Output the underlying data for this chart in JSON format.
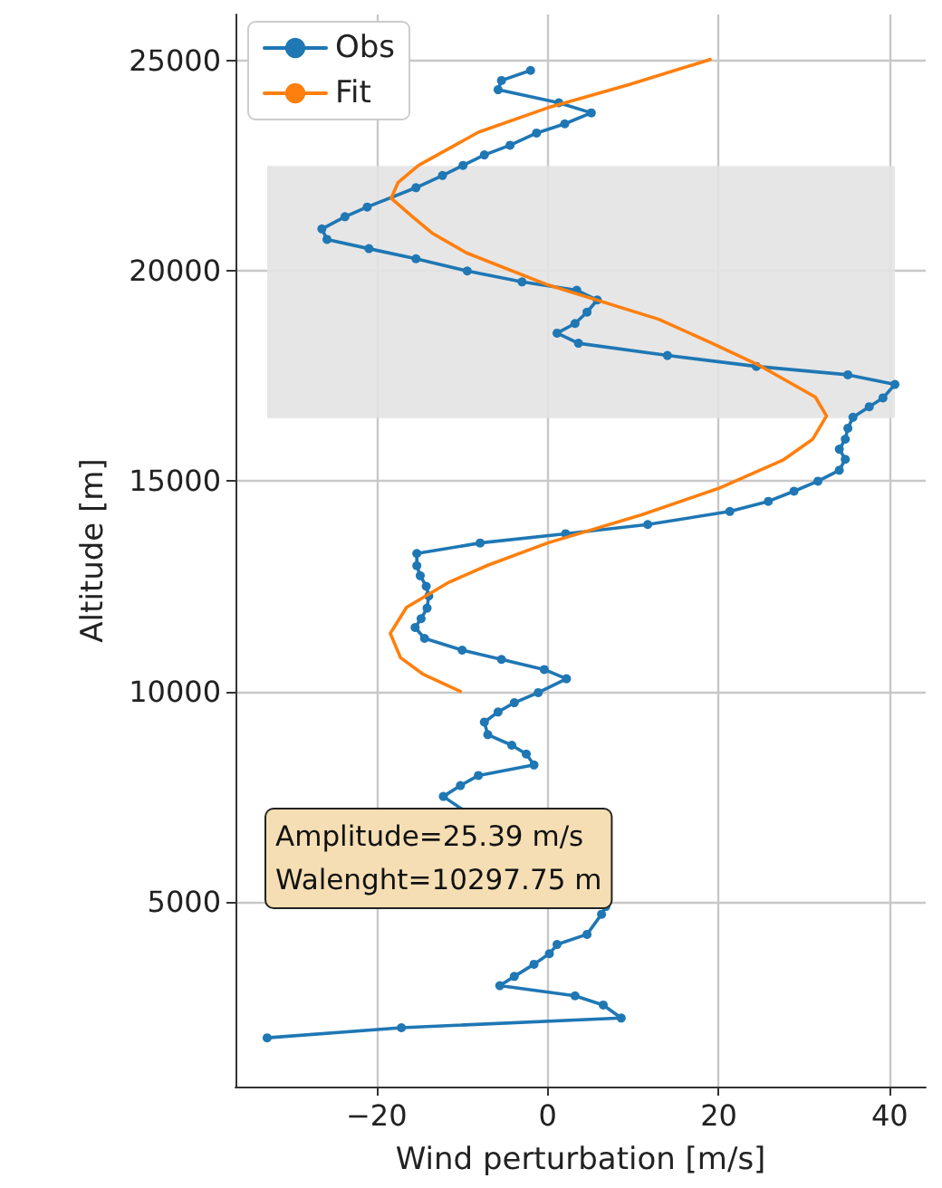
{
  "chart_data": {
    "type": "line",
    "xlabel": "Wind perturbation [m/s]",
    "ylabel": "Altitude [m]",
    "xlim": [
      -36.5,
      44.2
    ],
    "ylim": [
      600,
      26100
    ],
    "xticks": [
      {
        "value": -20,
        "label": "−20"
      },
      0,
      20,
      40
    ],
    "yticks": [
      5000,
      10000,
      15000,
      20000,
      25000
    ],
    "grid": true,
    "legend": "top left",
    "series": [
      {
        "name": "Obs",
        "color": "#1f77b4",
        "marker": "circle",
        "x": [
          -2.0,
          -5.4,
          -5.8,
          1.3,
          5.1,
          2.0,
          -1.3,
          -4.4,
          -7.4,
          -9.9,
          -12.3,
          -15.4,
          -21.1,
          -23.7,
          -26.4,
          -25.8,
          -20.9,
          -15.4,
          -9.4,
          -3.0,
          3.4,
          5.8,
          4.6,
          3.2,
          1.1,
          3.6,
          14.0,
          24.4,
          35.1,
          40.6,
          39.2,
          37.6,
          35.7,
          35.1,
          34.8,
          34.1,
          34.8,
          34.1,
          31.6,
          28.8,
          25.8,
          21.3,
          11.7,
          2.1,
          -7.9,
          -15.3,
          -15.3,
          -14.9,
          -14.2,
          -13.9,
          -14.1,
          -14.8,
          -15.5,
          -14.4,
          -10.0,
          -5.4,
          -0.4,
          2.2,
          -1.1,
          -3.9,
          -5.8,
          -7.4,
          -7.0,
          -4.2,
          -2.5,
          -1.6,
          -8.1,
          -10.2,
          -12.2,
          6.8,
          6.3,
          4.6,
          1.1,
          0.2,
          -1.6,
          -3.9,
          -5.6,
          3.2,
          6.5,
          8.6,
          -17.1,
          -32.8
        ],
        "values": [
          24770,
          24530,
          24310,
          24000,
          23760,
          23500,
          23280,
          22990,
          22760,
          22510,
          22270,
          21980,
          21520,
          21290,
          21000,
          20750,
          20530,
          20290,
          20000,
          19740,
          19540,
          19310,
          19020,
          18750,
          18520,
          18280,
          17990,
          17730,
          17530,
          17300,
          16980,
          16770,
          16520,
          16260,
          16000,
          15760,
          15520,
          15260,
          15000,
          14760,
          14520,
          14280,
          13970,
          13750,
          13530,
          13280,
          12990,
          12750,
          12500,
          12270,
          11980,
          11730,
          11520,
          11260,
          10980,
          10760,
          10520,
          10300,
          9970,
          9730,
          9510,
          9270,
          8970,
          8720,
          8510,
          8250,
          8000,
          7760,
          7500,
          4880,
          4700,
          4220,
          3980,
          3760,
          3510,
          3220,
          3000,
          2760,
          2540,
          2230,
          2000,
          1760
        ]
      },
      {
        "name": "Fit",
        "color": "#ff7f0e",
        "marker": "none",
        "x": [
          -10.2,
          -14.5,
          -17.2,
          -18.4,
          -16.5,
          -11.5,
          -7.0,
          0,
          11,
          20,
          27.5,
          31,
          32.6,
          31.3,
          24.6,
          19,
          13,
          0,
          -9.5,
          -13.5,
          -15.8,
          -18.3,
          -17.5,
          -15.1,
          -8.1,
          0,
          9.5,
          19
        ],
        "values": [
          10000,
          10400,
          10800,
          11380,
          12000,
          12600,
          13000,
          13530,
          14200,
          14830,
          15500,
          16000,
          16550,
          17000,
          17770,
          18300,
          18850,
          19670,
          20430,
          20900,
          21290,
          21730,
          22100,
          22510,
          23300,
          23880,
          24430,
          25030
        ]
      }
    ],
    "bands": [
      {
        "axis": "y",
        "from": 16500,
        "to": 22500,
        "color": "#e3e3e3"
      }
    ],
    "annotations": [
      "Amplitude=25.39 m/s",
      "Walenght=10297.75 m"
    ]
  }
}
